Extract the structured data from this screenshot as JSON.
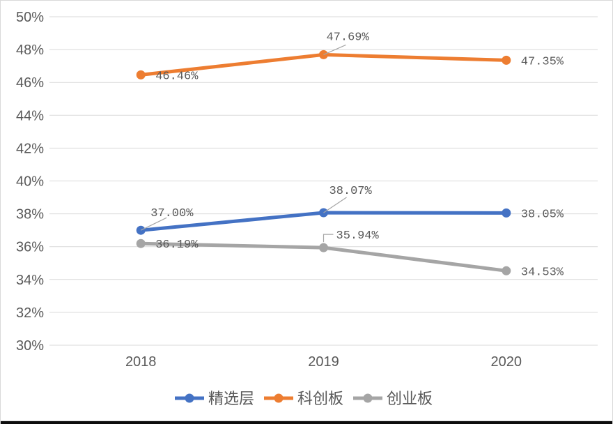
{
  "chart_data": {
    "type": "line",
    "title": "",
    "categories": [
      "2018",
      "2019",
      "2020"
    ],
    "series": [
      {
        "key": "selected-tier",
        "name": "精选层",
        "color": "#4472C4",
        "values": [
          37.0,
          38.07,
          38.05
        ],
        "labels": [
          "37.00%",
          "38.07%",
          "38.05%"
        ]
      },
      {
        "key": "star-market",
        "name": "科创板",
        "color": "#ED7D31",
        "values": [
          46.46,
          47.69,
          47.35
        ],
        "labels": [
          "46.46%",
          "47.69%",
          "47.35%"
        ]
      },
      {
        "key": "chinext",
        "name": "创业板",
        "color": "#A5A5A5",
        "values": [
          36.19,
          35.94,
          34.53
        ],
        "labels": [
          "36.19%",
          "35.94%",
          "34.53%"
        ]
      }
    ],
    "ylim": [
      30,
      50
    ],
    "yticks": [
      30,
      32,
      34,
      36,
      38,
      40,
      42,
      44,
      46,
      48,
      50
    ],
    "ytick_labels": [
      "30%",
      "32%",
      "34%",
      "36%",
      "38%",
      "40%",
      "42%",
      "44%",
      "46%",
      "48%",
      "50%"
    ],
    "grid": true,
    "legend_position": "bottom",
    "marker": "circle",
    "colors": {
      "grid": "#D9D9D9",
      "axis_text": "#595959",
      "label_text": "#595959",
      "leader": "#A6A6A6"
    }
  }
}
